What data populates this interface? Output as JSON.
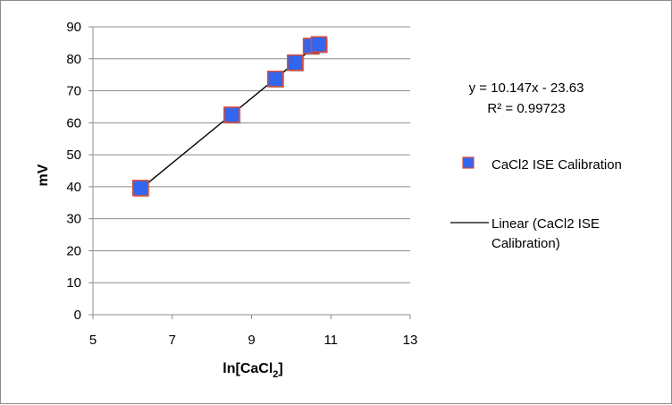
{
  "chart_data": {
    "type": "scatter",
    "xlabel": "ln[CaCl",
    "xlabel_sub": "2",
    "xlabel_suffix": "]",
    "ylabel": "mV",
    "xlim": [
      5,
      13
    ],
    "ylim": [
      0,
      90
    ],
    "x_ticks": [
      "5",
      "7",
      "9",
      "11",
      "13"
    ],
    "y_ticks": [
      "0",
      "10",
      "20",
      "30",
      "40",
      "50",
      "60",
      "70",
      "80",
      "90"
    ],
    "grid": "horizontal",
    "legend_position": "right",
    "series": [
      {
        "name": "CaCl2 ISE Calibration",
        "marker": "square",
        "marker_color": "#3366ee",
        "marker_edge_color": "#d94a3a",
        "points": [
          {
            "x": 6.2,
            "y": 39.6
          },
          {
            "x": 8.5,
            "y": 62.5
          },
          {
            "x": 9.6,
            "y": 73.7
          },
          {
            "x": 10.1,
            "y": 78.8
          },
          {
            "x": 10.5,
            "y": 84.0
          },
          {
            "x": 10.7,
            "y": 84.5
          }
        ]
      }
    ],
    "trendline": {
      "name": "Linear (CaCl2 ISE Calibration)",
      "name_lines": [
        "Linear (CaCl2 ISE",
        "Calibration)"
      ],
      "type": "linear",
      "slope": 10.147,
      "intercept": -23.63,
      "x_range": [
        6.2,
        10.7
      ],
      "color": "#000000",
      "equation": "y = 10.147x - 23.63",
      "r_squared": "R² = 0.99723"
    }
  }
}
